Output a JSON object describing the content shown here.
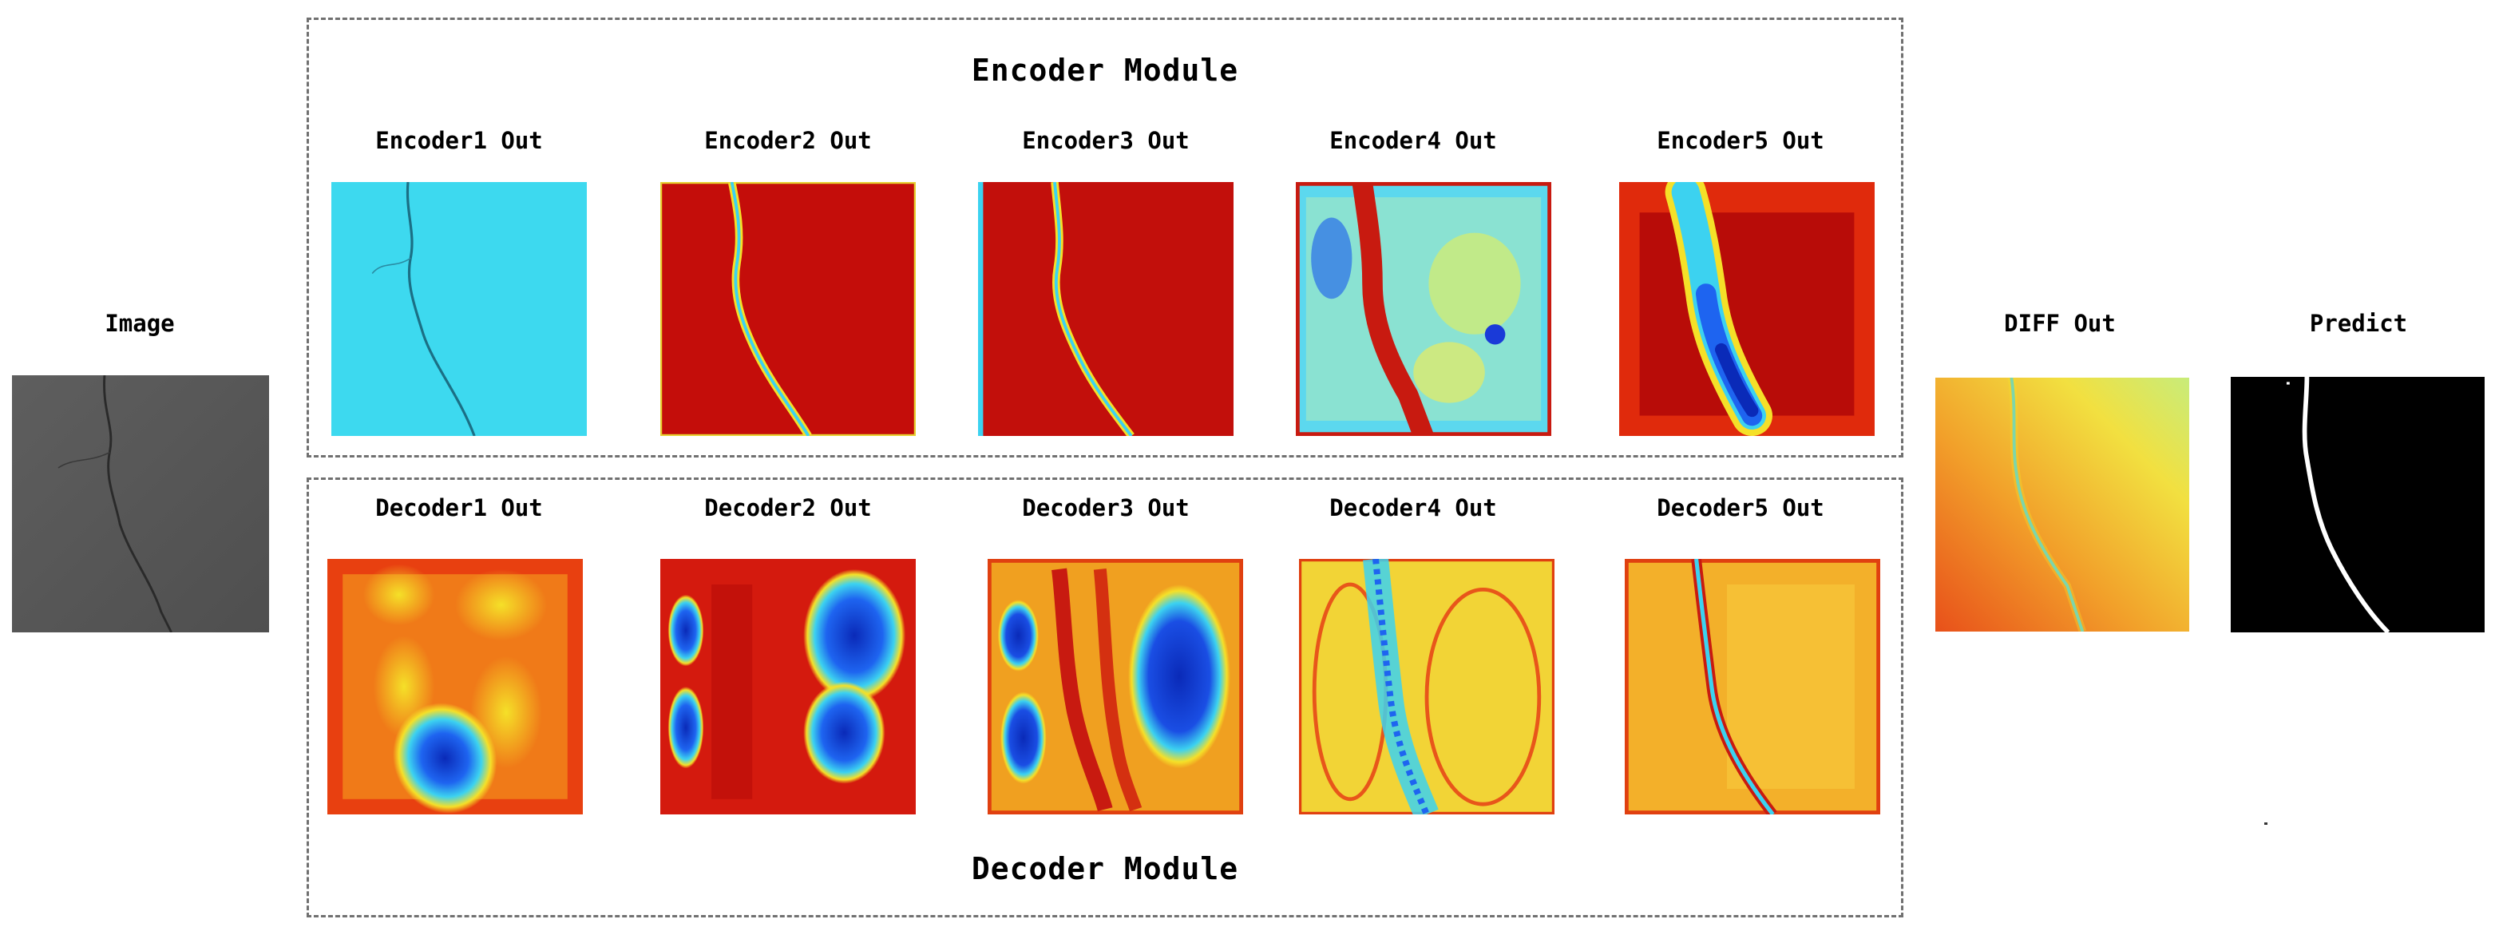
{
  "input": {
    "label": "Image"
  },
  "encoder_module": {
    "title": "Encoder Module",
    "stages": [
      {
        "label": "Encoder1 Out",
        "colormap": "cyan-relief"
      },
      {
        "label": "Encoder2 Out",
        "colormap": "jet"
      },
      {
        "label": "Encoder3 Out",
        "colormap": "jet"
      },
      {
        "label": "Encoder4 Out",
        "colormap": "jet"
      },
      {
        "label": "Encoder5 Out",
        "colormap": "jet"
      }
    ]
  },
  "decoder_module": {
    "title": "Decoder Module",
    "stages": [
      {
        "label": "Decoder1 Out",
        "colormap": "jet"
      },
      {
        "label": "Decoder2 Out",
        "colormap": "jet"
      },
      {
        "label": "Decoder3 Out",
        "colormap": "jet"
      },
      {
        "label": "Decoder4 Out",
        "colormap": "jet"
      },
      {
        "label": "Decoder5 Out",
        "colormap": "jet"
      }
    ]
  },
  "diff": {
    "label": "DIFF Out"
  },
  "prediction": {
    "label": "Predict"
  },
  "colors": {
    "border": "#707070",
    "jet_red": "#c80f0a",
    "jet_yellow": "#f5e028",
    "jet_cyan": "#3cd2f0",
    "jet_blue": "#0a3cdc",
    "input_gray": "#5a5a5a"
  }
}
